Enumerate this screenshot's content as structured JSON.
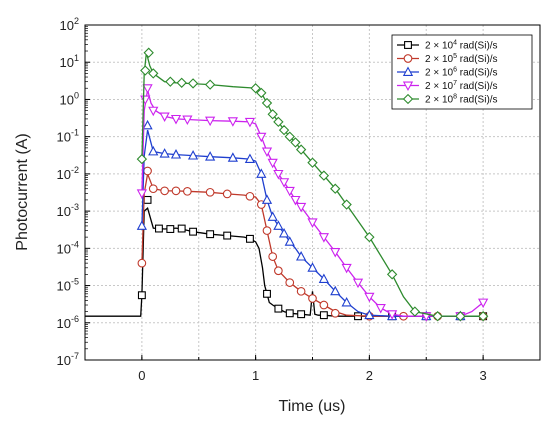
{
  "chart_data": {
    "type": "line",
    "xlabel": "Time (us)",
    "ylabel": "Photocurrent (A)",
    "xlim": [
      -0.5,
      3.5
    ],
    "ylog": true,
    "ylim_exp": [
      -7,
      2
    ],
    "x_ticks": [
      "0",
      "1",
      "2",
      "3"
    ],
    "y_ticks": [
      {
        "base": "10",
        "exp": "2"
      },
      {
        "base": "10",
        "exp": "1"
      },
      {
        "base": "10",
        "exp": "0"
      },
      {
        "base": "10",
        "exp": "-1"
      },
      {
        "base": "10",
        "exp": "-2"
      },
      {
        "base": "10",
        "exp": "-3"
      },
      {
        "base": "10",
        "exp": "-4"
      },
      {
        "base": "10",
        "exp": "-5"
      },
      {
        "base": "10",
        "exp": "-6"
      },
      {
        "base": "10",
        "exp": "-7"
      }
    ],
    "grid": true,
    "legend_position": "top-right",
    "series": [
      {
        "name": "2 × 10⁴ rad(Si)/s",
        "legend": {
          "pre": "2 × 10",
          "sup": "4",
          "post": " rad(Si)/s"
        },
        "color": "#000000",
        "marker": "square",
        "x": [
          -0.5,
          -0.01,
          0.0,
          0.02,
          0.05,
          0.1,
          0.2,
          0.3,
          0.35,
          0.45,
          0.6,
          0.75,
          0.9,
          0.95,
          1.0,
          1.03,
          1.06,
          1.08,
          1.1,
          1.12,
          1.15,
          1.2,
          1.25,
          1.3,
          1.4,
          1.48,
          1.5,
          1.52,
          1.55,
          1.6,
          1.7,
          2.0,
          2.5,
          3.0
        ],
        "y": [
          1.5e-06,
          1.5e-06,
          5.5e-06,
          0.001,
          0.0012,
          0.00035,
          0.00033,
          0.00035,
          0.00033,
          0.00028,
          0.00024,
          0.00022,
          0.0002,
          0.00018,
          0.00015,
          0.0001,
          3e-05,
          1e-05,
          6e-06,
          3.5e-06,
          3e-06,
          2.4e-06,
          2e-06,
          1.8e-06,
          1.7e-06,
          1.6e-06,
          7e-06,
          1.7e-06,
          1.6e-06,
          1.6e-06,
          1.5e-06,
          1.5e-06,
          1.5e-06,
          1.5e-06
        ],
        "marker_x": [
          0.0,
          0.05,
          0.15,
          0.25,
          0.35,
          0.45,
          0.6,
          0.75,
          0.95,
          1.1,
          1.2,
          1.3,
          1.4,
          1.6,
          1.9,
          2.2,
          2.5,
          2.8,
          3.0
        ],
        "marker_y": [
          5.5e-06,
          0.002,
          0.00034,
          0.00033,
          0.00034,
          0.00028,
          0.00024,
          0.00022,
          0.00018,
          6e-06,
          2.4e-06,
          1.8e-06,
          1.7e-06,
          1.6e-06,
          1.5e-06,
          1.5e-06,
          1.5e-06,
          1.5e-06,
          1.5e-06
        ]
      },
      {
        "name": "2 × 10⁵ rad(Si)/s",
        "legend": {
          "pre": "2 × 10",
          "sup": "5",
          "post": " rad(Si)/s"
        },
        "color": "#c0392b",
        "marker": "circle",
        "x": [
          0.0,
          0.02,
          0.05,
          0.1,
          0.2,
          0.3,
          0.4,
          0.6,
          0.75,
          0.9,
          0.95,
          1.0,
          1.05,
          1.1,
          1.15,
          1.2,
          1.3,
          1.4,
          1.5,
          1.6,
          1.7,
          1.8,
          2.0,
          2.3,
          2.6,
          3.0
        ],
        "y": [
          4e-05,
          0.003,
          0.01,
          0.004,
          0.0035,
          0.0035,
          0.0034,
          0.0032,
          0.0029,
          0.0027,
          0.0025,
          0.0024,
          0.0015,
          0.0003,
          6e-05,
          2.5e-05,
          1.2e-05,
          7e-06,
          4.5e-06,
          3e-06,
          2e-06,
          1.6e-06,
          1.5e-06,
          1.5e-06,
          1.5e-06,
          1.5e-06
        ],
        "marker_x": [
          0.0,
          0.05,
          0.1,
          0.2,
          0.3,
          0.4,
          0.6,
          0.75,
          0.95,
          1.05,
          1.1,
          1.15,
          1.2,
          1.3,
          1.4,
          1.5,
          1.6,
          1.7,
          2.0,
          2.3,
          2.6,
          3.0
        ],
        "marker_y": [
          4e-05,
          0.012,
          0.004,
          0.0035,
          0.0035,
          0.0034,
          0.0032,
          0.0029,
          0.0025,
          0.0015,
          0.0003,
          6e-05,
          2.5e-05,
          1.2e-05,
          7e-06,
          4.5e-06,
          3e-06,
          1.8e-06,
          1.5e-06,
          1.5e-06,
          1.5e-06,
          1.5e-06
        ]
      },
      {
        "name": "2 × 10⁶ rad(Si)/s",
        "legend": {
          "pre": "2 × 10",
          "sup": "6",
          "post": " rad(Si)/s"
        },
        "color": "#1f3fcf",
        "marker": "triangle-up",
        "x": [
          0.0,
          0.02,
          0.05,
          0.1,
          0.2,
          0.3,
          0.45,
          0.6,
          0.8,
          0.95,
          1.0,
          1.05,
          1.1,
          1.15,
          1.2,
          1.25,
          1.3,
          1.35,
          1.4,
          1.5,
          1.6,
          1.7,
          1.8,
          1.9,
          2.0,
          2.2,
          2.5,
          2.8,
          3.0
        ],
        "y": [
          0.0004,
          0.03,
          0.15,
          0.04,
          0.035,
          0.033,
          0.031,
          0.029,
          0.027,
          0.025,
          0.022,
          0.01,
          0.002,
          0.0007,
          0.0004,
          0.00025,
          0.00015,
          0.0001,
          6e-05,
          3e-05,
          1.5e-05,
          7e-06,
          3.5e-06,
          2e-06,
          1.6e-06,
          1.5e-06,
          1.5e-06,
          1.5e-06,
          1.5e-06
        ],
        "marker_x": [
          0.0,
          0.05,
          0.1,
          0.2,
          0.3,
          0.45,
          0.6,
          0.8,
          0.95,
          1.05,
          1.1,
          1.15,
          1.2,
          1.25,
          1.3,
          1.4,
          1.5,
          1.6,
          1.7,
          1.8,
          2.0,
          2.2,
          2.5,
          2.8
        ],
        "marker_y": [
          0.0004,
          0.2,
          0.04,
          0.035,
          0.033,
          0.031,
          0.029,
          0.027,
          0.025,
          0.01,
          0.002,
          0.0007,
          0.0004,
          0.00025,
          0.00015,
          6e-05,
          3e-05,
          1.5e-05,
          7e-06,
          3.5e-06,
          1.6e-06,
          1.5e-06,
          1.5e-06,
          1.5e-06
        ]
      },
      {
        "name": "2 × 10⁷ rad(Si)/s",
        "legend": {
          "pre": "2 × 10",
          "sup": "7",
          "post": " rad(Si)/s"
        },
        "color": "#cc22ee",
        "marker": "triangle-down",
        "x": [
          0.0,
          0.02,
          0.05,
          0.08,
          0.12,
          0.2,
          0.3,
          0.4,
          0.6,
          0.8,
          0.95,
          1.0,
          1.05,
          1.1,
          1.15,
          1.2,
          1.25,
          1.3,
          1.35,
          1.4,
          1.5,
          1.6,
          1.7,
          1.8,
          1.9,
          2.0,
          2.1,
          2.2,
          2.3,
          2.5,
          2.8,
          2.9,
          3.0
        ],
        "y": [
          0.003,
          0.5,
          1.8,
          0.8,
          0.5,
          0.35,
          0.3,
          0.29,
          0.27,
          0.26,
          0.25,
          0.22,
          0.1,
          0.04,
          0.02,
          0.01,
          0.006,
          0.0035,
          0.002,
          0.0013,
          0.0005,
          0.0002,
          8e-05,
          3e-05,
          1.2e-05,
          5e-06,
          2.5e-06,
          1.7e-06,
          1.5e-06,
          1.5e-06,
          1.5e-06,
          2e-06,
          3.5e-06
        ],
        "marker_x": [
          0.0,
          0.03,
          0.05,
          0.1,
          0.2,
          0.3,
          0.4,
          0.6,
          0.8,
          0.95,
          1.05,
          1.1,
          1.15,
          1.2,
          1.25,
          1.3,
          1.35,
          1.4,
          1.5,
          1.6,
          1.7,
          1.8,
          1.9,
          2.0,
          2.1,
          2.2,
          2.5,
          2.8,
          3.0
        ],
        "marker_y": [
          0.003,
          1.0,
          2.0,
          0.5,
          0.35,
          0.3,
          0.29,
          0.27,
          0.26,
          0.25,
          0.1,
          0.04,
          0.02,
          0.01,
          0.006,
          0.0035,
          0.002,
          0.0013,
          0.0005,
          0.0002,
          8e-05,
          3e-05,
          1.2e-05,
          5e-06,
          2.5e-06,
          1.7e-06,
          1.5e-06,
          1.5e-06,
          3.5e-06
        ]
      },
      {
        "name": "2 × 10⁸ rad(Si)/s",
        "legend": {
          "pre": "2 × 10",
          "sup": "8",
          "post": " rad(Si)/s"
        },
        "color": "#2e8b2e",
        "marker": "diamond",
        "x": [
          0.0,
          0.02,
          0.04,
          0.07,
          0.1,
          0.2,
          0.3,
          0.4,
          0.6,
          0.8,
          1.0,
          1.05,
          1.1,
          1.15,
          1.2,
          1.25,
          1.3,
          1.35,
          1.4,
          1.5,
          1.6,
          1.7,
          1.8,
          2.0,
          2.2,
          2.3,
          2.4,
          2.6,
          2.8,
          3.0
        ],
        "y": [
          0.025,
          5.0,
          18.0,
          8.0,
          5.0,
          3.0,
          2.8,
          2.7,
          2.5,
          2.2,
          2.0,
          1.5,
          0.8,
          0.4,
          0.25,
          0.15,
          0.1,
          0.07,
          0.045,
          0.02,
          0.009,
          0.004,
          0.0015,
          0.0002,
          2e-05,
          5e-06,
          2e-06,
          1.5e-06,
          1.5e-06,
          1.5e-06
        ],
        "marker_x": [
          0.0,
          0.03,
          0.06,
          0.1,
          0.25,
          0.35,
          0.45,
          0.6,
          1.0,
          1.05,
          1.1,
          1.15,
          1.2,
          1.25,
          1.3,
          1.35,
          1.4,
          1.5,
          1.6,
          1.7,
          1.8,
          2.0,
          2.2,
          2.4,
          2.6,
          2.8,
          3.0
        ],
        "marker_y": [
          0.025,
          6.0,
          18.0,
          5.0,
          3.0,
          2.8,
          2.7,
          2.5,
          2.0,
          1.5,
          0.8,
          0.4,
          0.25,
          0.15,
          0.1,
          0.07,
          0.045,
          0.02,
          0.009,
          0.004,
          0.0015,
          0.0002,
          2e-05,
          2e-06,
          1.5e-06,
          1.5e-06,
          1.5e-06
        ]
      }
    ]
  }
}
